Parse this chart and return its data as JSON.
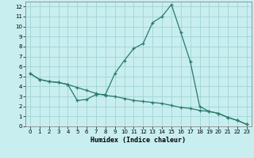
{
  "title": "",
  "xlabel": "Humidex (Indice chaleur)",
  "ylabel": "",
  "background_color": "#c8eef0",
  "grid_color": "#a0d4d8",
  "line_color": "#2d7a6a",
  "spine_color": "#888888",
  "xlim": [
    -0.5,
    23.5
  ],
  "ylim": [
    0,
    12.5
  ],
  "xticks": [
    0,
    1,
    2,
    3,
    4,
    5,
    6,
    7,
    8,
    9,
    10,
    11,
    12,
    13,
    14,
    15,
    16,
    17,
    18,
    19,
    20,
    21,
    22,
    23
  ],
  "yticks": [
    0,
    1,
    2,
    3,
    4,
    5,
    6,
    7,
    8,
    9,
    10,
    11,
    12
  ],
  "line1_x": [
    0,
    1,
    2,
    3,
    4,
    5,
    6,
    7,
    8,
    9,
    10,
    11,
    12,
    13,
    14,
    15,
    16,
    17,
    18,
    19,
    20,
    21,
    22,
    23
  ],
  "line1_y": [
    5.3,
    4.7,
    4.5,
    4.4,
    4.2,
    2.6,
    2.7,
    3.2,
    3.2,
    5.3,
    6.6,
    7.8,
    8.3,
    10.4,
    11.0,
    12.2,
    9.4,
    6.5,
    2.0,
    1.5,
    1.3,
    0.9,
    0.6,
    0.2
  ],
  "line2_x": [
    0,
    1,
    2,
    3,
    4,
    5,
    6,
    7,
    8,
    9,
    10,
    11,
    12,
    13,
    14,
    15,
    16,
    17,
    18,
    19,
    20,
    21,
    22,
    23
  ],
  "line2_y": [
    5.3,
    4.7,
    4.5,
    4.4,
    4.2,
    3.9,
    3.6,
    3.3,
    3.1,
    3.0,
    2.8,
    2.6,
    2.5,
    2.4,
    2.3,
    2.1,
    1.9,
    1.8,
    1.6,
    1.5,
    1.3,
    0.9,
    0.6,
    0.2
  ],
  "tick_fontsize": 5.0,
  "xlabel_fontsize": 6.0
}
